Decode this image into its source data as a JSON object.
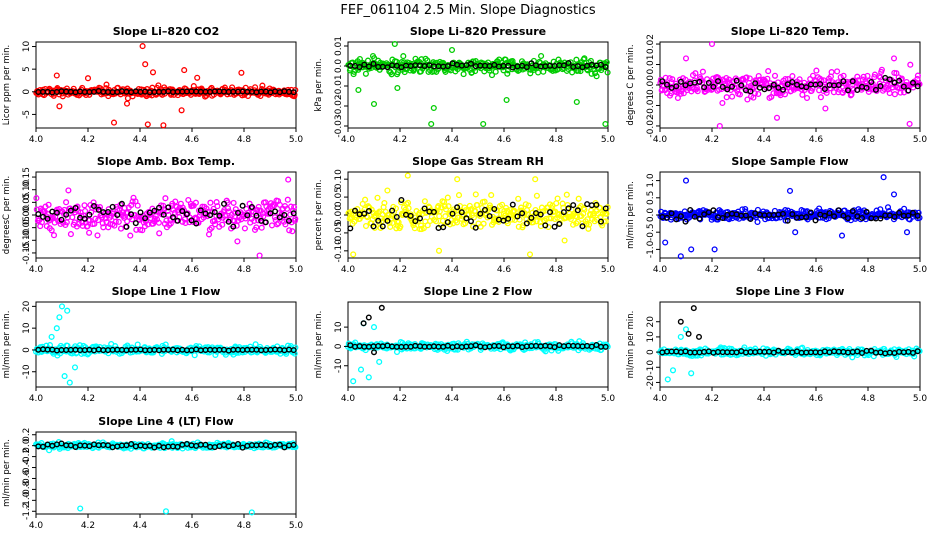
{
  "figure_title": "FEF_061104  2.5 Min. Slope Diagnostics",
  "chart_data": [
    {
      "type": "scatter",
      "title": "Slope Li–820 CO2",
      "ylabel": "Licor ppm per min.",
      "color_primary": "#ff0000",
      "xlim": [
        4.0,
        5.0
      ],
      "ylim": [
        -8,
        11
      ],
      "yticks": [
        -5,
        0,
        5,
        10
      ],
      "ytick_labels": [
        "-5",
        "0",
        "5",
        "10"
      ],
      "xticks": [
        4.0,
        4.2,
        4.4,
        4.6,
        4.8,
        5.0
      ],
      "xtick_labels": [
        "4.0",
        "4.2",
        "4.4",
        "4.6",
        "4.8",
        "5.0"
      ],
      "spread": 1.0,
      "outliers": [
        [
          4.08,
          3.6
        ],
        [
          4.09,
          -3.2
        ],
        [
          4.3,
          -6.8
        ],
        [
          4.41,
          10.1
        ],
        [
          4.42,
          6.1
        ],
        [
          4.43,
          -7.2
        ],
        [
          4.49,
          -7.4
        ],
        [
          4.57,
          4.8
        ],
        [
          4.62,
          3.1
        ],
        [
          4.79,
          4.2
        ],
        [
          4.56,
          -4.1
        ],
        [
          4.2,
          3.0
        ],
        [
          4.35,
          -2.6
        ],
        [
          4.45,
          4.3
        ]
      ],
      "black_spread": 0.2
    },
    {
      "type": "scatter",
      "title": "Slope Li–820 Pressure",
      "ylabel": "kPa per min.",
      "color_primary": "#00cc00",
      "xlim": [
        4.0,
        5.0
      ],
      "ylim": [
        -0.031,
        0.012
      ],
      "yticks": [
        -0.03,
        -0.02,
        -0.01,
        0.0,
        0.01
      ],
      "ytick_labels": [
        "-0.03",
        "-0.02",
        "-0.01",
        "0.0",
        "0.01"
      ],
      "xticks": [
        4.0,
        4.2,
        4.4,
        4.6,
        4.8,
        5.0
      ],
      "xtick_labels": [
        "4.0",
        "4.2",
        "4.4",
        "4.6",
        "4.8",
        "5.0"
      ],
      "spread": 0.004,
      "outliers": [
        [
          4.04,
          -0.012
        ],
        [
          4.1,
          -0.019
        ],
        [
          4.19,
          -0.011
        ],
        [
          4.32,
          -0.029
        ],
        [
          4.33,
          -0.021
        ],
        [
          4.52,
          -0.029
        ],
        [
          4.61,
          -0.017
        ],
        [
          4.88,
          -0.018
        ],
        [
          4.99,
          -0.029
        ],
        [
          4.18,
          0.011
        ],
        [
          4.4,
          0.008
        ]
      ],
      "black_spread": 0.0015
    },
    {
      "type": "scatter",
      "title": "Slope Li–820 Temp.",
      "ylabel": "degrees C per min.",
      "color_primary": "#ff00ff",
      "xlim": [
        4.0,
        5.0
      ],
      "ylim": [
        -0.021,
        0.021
      ],
      "yticks": [
        -0.02,
        -0.01,
        0.0,
        0.01,
        0.02
      ],
      "ytick_labels": [
        "-0.02",
        "-0.01",
        "0.00",
        "0.01",
        "0.02"
      ],
      "xticks": [
        4.0,
        4.2,
        4.4,
        4.6,
        4.8,
        5.0
      ],
      "xtick_labels": [
        "4.0",
        "4.2",
        "4.4",
        "4.6",
        "4.8",
        "5.0"
      ],
      "spread": 0.006,
      "outliers": [
        [
          4.2,
          0.02
        ],
        [
          4.23,
          -0.02
        ],
        [
          4.96,
          -0.019
        ],
        [
          4.1,
          0.013
        ],
        [
          4.45,
          -0.016
        ],
        [
          4.9,
          0.013
        ]
      ],
      "black_spread": 0.004
    },
    {
      "type": "scatter",
      "title": "Slope Amb. Box Temp.",
      "ylabel": "degreesC per min.",
      "color_primary": "#ff00ff",
      "xlim": [
        4.0,
        5.0
      ],
      "ylim": [
        -0.17,
        0.17
      ],
      "yticks": [
        -0.15,
        -0.1,
        -0.05,
        0.0,
        0.05,
        0.1,
        0.15
      ],
      "ytick_labels": [
        "-0.15",
        "-0.10",
        "-0.05",
        "0.00",
        "0.05",
        "0.10",
        "0.15"
      ],
      "xticks": [
        4.0,
        4.2,
        4.4,
        4.6,
        4.8,
        5.0
      ],
      "xtick_labels": [
        "4.0",
        "4.2",
        "4.4",
        "4.6",
        "4.8",
        "5.0"
      ],
      "spread": 0.07,
      "outliers": [
        [
          4.86,
          -0.16
        ],
        [
          4.97,
          0.14
        ]
      ],
      "black_spread": 0.06
    },
    {
      "type": "scatter",
      "title": "Slope Gas Stream RH",
      "ylabel": "percent per min.",
      "color_primary": "#ffff00",
      "xlim": [
        4.0,
        5.0
      ],
      "ylim": [
        -0.12,
        0.12
      ],
      "yticks": [
        -0.1,
        -0.05,
        0.0,
        0.05,
        0.1
      ],
      "ytick_labels": [
        "-0.10",
        "-0.05",
        "0.00",
        "0.05",
        "0.10"
      ],
      "xticks": [
        4.0,
        4.2,
        4.4,
        4.6,
        4.8,
        5.0
      ],
      "xtick_labels": [
        "4.0",
        "4.2",
        "4.4",
        "4.6",
        "4.8",
        "5.0"
      ],
      "spread": 0.045,
      "outliers": [
        [
          4.02,
          -0.11
        ],
        [
          4.23,
          0.11
        ],
        [
          4.35,
          -0.1
        ],
        [
          4.42,
          0.1
        ],
        [
          4.7,
          -0.11
        ],
        [
          4.72,
          0.1
        ]
      ],
      "black_spread": 0.05
    },
    {
      "type": "scatter",
      "title": "Slope Sample Flow",
      "ylabel": "ml/min per min.",
      "color_primary": "#0000ff",
      "xlim": [
        4.0,
        5.0
      ],
      "ylim": [
        -1.25,
        1.25
      ],
      "yticks": [
        -1.0,
        -0.5,
        0.0,
        0.5,
        1.0
      ],
      "ytick_labels": [
        "-1.0",
        "-0.5",
        "0.0",
        "0.5",
        "1.0"
      ],
      "xticks": [
        4.0,
        4.2,
        4.4,
        4.6,
        4.8,
        5.0
      ],
      "xtick_labels": [
        "4.0",
        "4.2",
        "4.4",
        "4.6",
        "4.8",
        "5.0"
      ],
      "spread": 0.15,
      "outliers": [
        [
          4.1,
          1.0
        ],
        [
          4.12,
          -1.0
        ],
        [
          4.08,
          -1.2
        ],
        [
          4.5,
          0.7
        ],
        [
          4.52,
          -0.5
        ],
        [
          4.86,
          1.1
        ],
        [
          4.7,
          -0.6
        ],
        [
          4.02,
          -0.8
        ],
        [
          4.21,
          -1.0
        ],
        [
          4.9,
          0.6
        ],
        [
          4.95,
          -0.5
        ]
      ],
      "black_spread": 0.2
    },
    {
      "type": "scatter",
      "title": "Slope Line 1 Flow",
      "ylabel": "ml/min per min.",
      "color_primary": "#00ffff",
      "xlim": [
        4.0,
        5.0
      ],
      "ylim": [
        -17,
        22
      ],
      "yticks": [
        -10,
        0,
        10,
        20
      ],
      "ytick_labels": [
        "-10",
        "0",
        "10",
        "20"
      ],
      "xticks": [
        4.0,
        4.2,
        4.4,
        4.6,
        4.8,
        5.0
      ],
      "xtick_labels": [
        "4.0",
        "4.2",
        "4.4",
        "4.6",
        "4.8",
        "5.0"
      ],
      "spread": 2.0,
      "outliers": [
        [
          4.1,
          20
        ],
        [
          4.12,
          18
        ],
        [
          4.13,
          -15
        ],
        [
          4.08,
          10
        ],
        [
          4.15,
          -8
        ],
        [
          4.06,
          6
        ],
        [
          4.11,
          -12
        ],
        [
          4.09,
          15
        ]
      ],
      "black_spread": 0.3
    },
    {
      "type": "scatter",
      "title": "Slope Line 2 Flow",
      "ylabel": "ml/min per min.",
      "color_primary": "#00ffff",
      "xlim": [
        4.0,
        5.0
      ],
      "ylim": [
        -21,
        23
      ],
      "yticks": [
        -10,
        0,
        10
      ],
      "ytick_labels": [
        "-10",
        "0",
        "10"
      ],
      "xticks": [
        4.0,
        4.2,
        4.4,
        4.6,
        4.8,
        5.0
      ],
      "xtick_labels": [
        "4.0",
        "4.2",
        "4.4",
        "4.6",
        "4.8",
        "5.0"
      ],
      "spread": 2.0,
      "outliers": [
        [
          4.02,
          -18
        ],
        [
          4.05,
          -12
        ],
        [
          4.08,
          -16
        ],
        [
          4.1,
          10
        ],
        [
          4.12,
          -8
        ],
        [
          4.06,
          12
        ]
      ],
      "black_spread": 0.8,
      "black_outliers": [
        [
          4.13,
          20
        ],
        [
          4.08,
          15
        ],
        [
          4.06,
          12
        ],
        [
          4.1,
          -3
        ]
      ]
    },
    {
      "type": "scatter",
      "title": "Slope Line 3 Flow",
      "ylabel": "ml/min per min.",
      "color_primary": "#00ffff",
      "xlim": [
        4.0,
        5.0
      ],
      "ylim": [
        -23,
        33
      ],
      "yticks": [
        -20,
        -10,
        0,
        10,
        20
      ],
      "ytick_labels": [
        "-20",
        "-10",
        "0",
        "10",
        "20"
      ],
      "xticks": [
        4.0,
        4.2,
        4.4,
        4.6,
        4.8,
        5.0
      ],
      "xtick_labels": [
        "4.0",
        "4.2",
        "4.4",
        "4.6",
        "4.8",
        "5.0"
      ],
      "spread": 2.5,
      "outliers": [
        [
          4.03,
          -18
        ],
        [
          4.05,
          -12
        ],
        [
          4.1,
          15
        ],
        [
          4.12,
          -14
        ],
        [
          4.08,
          10
        ]
      ],
      "black_spread": 1.0,
      "black_outliers": [
        [
          4.13,
          29
        ],
        [
          4.08,
          20
        ],
        [
          4.11,
          12
        ],
        [
          4.15,
          10
        ]
      ]
    },
    {
      "type": "scatter",
      "title": "Slope Line 4 (LT) Flow",
      "ylabel": "ml/min per min.",
      "color_primary": "#00ffff",
      "xlim": [
        4.0,
        5.0
      ],
      "ylim": [
        -1.25,
        0.25
      ],
      "yticks": [
        -1.2,
        -1.0,
        -0.8,
        -0.6,
        -0.4,
        -0.2,
        0.0,
        0.2
      ],
      "ytick_labels": [
        "-1.2",
        "-1.0",
        "-0.8",
        "-0.6",
        "-0.4",
        "-0.2",
        "0.0",
        "0.2"
      ],
      "xticks": [
        4.0,
        4.2,
        4.4,
        4.6,
        4.8,
        5.0
      ],
      "xtick_labels": [
        "4.0",
        "4.2",
        "4.4",
        "4.6",
        "4.8",
        "5.0"
      ],
      "spread": 0.05,
      "outliers": [
        [
          4.17,
          -1.15
        ],
        [
          4.5,
          -1.2
        ],
        [
          4.83,
          -1.22
        ]
      ],
      "black_spread": 0.04
    }
  ]
}
